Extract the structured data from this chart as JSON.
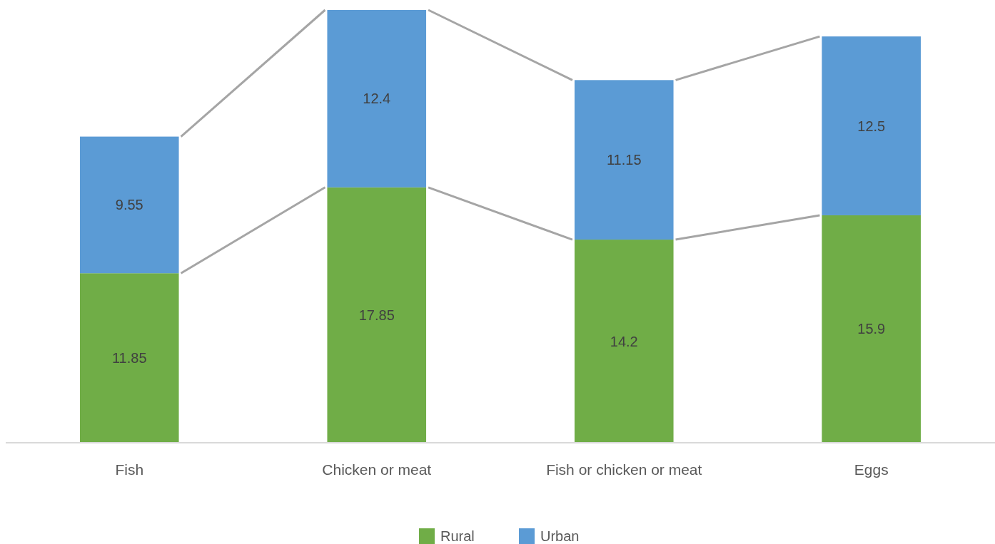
{
  "chart_data": {
    "type": "bar",
    "stacked": true,
    "categories": [
      "Fish",
      "Chicken or meat",
      "Fish or chicken or meat",
      "Eggs"
    ],
    "series": [
      {
        "name": "Rural",
        "color": "#70ad47",
        "values": [
          11.85,
          17.85,
          14.2,
          15.9
        ]
      },
      {
        "name": "Urban",
        "color": "#5b9bd5",
        "values": [
          9.55,
          12.4,
          11.15,
          12.5
        ]
      }
    ],
    "data_labels": true,
    "legend": "bottom",
    "grid": false
  }
}
